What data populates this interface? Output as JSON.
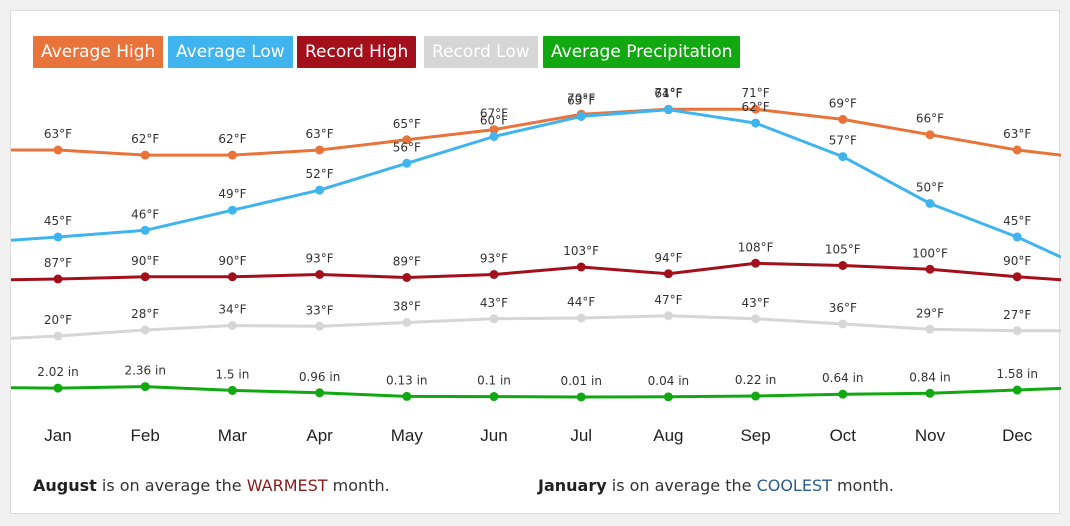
{
  "legend": {
    "avg_high": "Average High",
    "avg_low": "Average Low",
    "rec_high": "Record High",
    "rec_low": "Record Low",
    "precip": "Average Precipitation"
  },
  "colors": {
    "avg_high": "#e8743b",
    "avg_low": "#3fb4ee",
    "rec_high": "#a3101c",
    "rec_low": "#d6d6d6",
    "precip": "#12a812"
  },
  "chart_data": {
    "type": "line",
    "categories": [
      "Jan",
      "Feb",
      "Mar",
      "Apr",
      "May",
      "Jun",
      "Jul",
      "Aug",
      "Sep",
      "Oct",
      "Nov",
      "Dec"
    ],
    "series": [
      {
        "key": "avg_high",
        "name": "Average High",
        "unit": "°F",
        "values": [
          63,
          62,
          62,
          63,
          65,
          67,
          70,
          71,
          71,
          69,
          66,
          63
        ],
        "labels": [
          "63°F",
          "62°F",
          "62°F",
          "63°F",
          "65°F",
          "67°F",
          "70°F",
          "71°F",
          "71°F",
          "69°F",
          "66°F",
          "63°F"
        ],
        "edge_in": 63,
        "edge_out": 62
      },
      {
        "key": "avg_low",
        "name": "Average Low",
        "unit": "°F",
        "values": [
          45,
          46,
          49,
          52,
          56,
          60,
          63,
          64,
          62,
          57,
          50,
          45
        ],
        "labels": [
          "45°F",
          "46°F",
          "49°F",
          "52°F",
          "56°F",
          "60°F",
          "63°F",
          "64°F",
          "62°F",
          "57°F",
          "50°F",
          "45°F"
        ],
        "edge_in": 44.5,
        "edge_out": 42
      },
      {
        "key": "rec_high",
        "name": "Record High",
        "unit": "°F",
        "values": [
          87,
          90,
          90,
          93,
          89,
          93,
          103,
          94,
          108,
          105,
          100,
          90
        ],
        "labels": [
          "87°F",
          "90°F",
          "90°F",
          "93°F",
          "89°F",
          "93°F",
          "103°F",
          "94°F",
          "108°F",
          "105°F",
          "100°F",
          "90°F"
        ],
        "edge_in": 86,
        "edge_out": 86
      },
      {
        "key": "rec_low",
        "name": "Record Low",
        "unit": "°F",
        "values": [
          20,
          28,
          34,
          33,
          38,
          43,
          44,
          47,
          43,
          36,
          29,
          27
        ],
        "labels": [
          "20°F",
          "28°F",
          "34°F",
          "33°F",
          "38°F",
          "43°F",
          "44°F",
          "47°F",
          "43°F",
          "36°F",
          "29°F",
          "27°F"
        ],
        "edge_in": 17,
        "edge_out": 27
      },
      {
        "key": "precip",
        "name": "Average Precipitation",
        "unit": "in",
        "values": [
          2.02,
          2.36,
          1.5,
          0.96,
          0.13,
          0.1,
          0.01,
          0.04,
          0.22,
          0.64,
          0.84,
          1.58
        ],
        "labels": [
          "2.02 in",
          "2.36 in",
          "1.5 in",
          "0.96 in",
          "0.13 in",
          "0.1 in",
          "0.01 in",
          "0.04 in",
          "0.22 in",
          "0.64 in",
          "0.84 in",
          "1.58 in"
        ],
        "edge_in": 2.1,
        "edge_out": 1.95
      }
    ]
  },
  "footer": {
    "warm_month": "August",
    "warm_pre": " is on average the ",
    "warm_word": "WARMEST",
    "warm_post": " month.",
    "cool_month": "January",
    "cool_pre": " is on average the ",
    "cool_word": "COOLEST",
    "cool_post": " month."
  }
}
